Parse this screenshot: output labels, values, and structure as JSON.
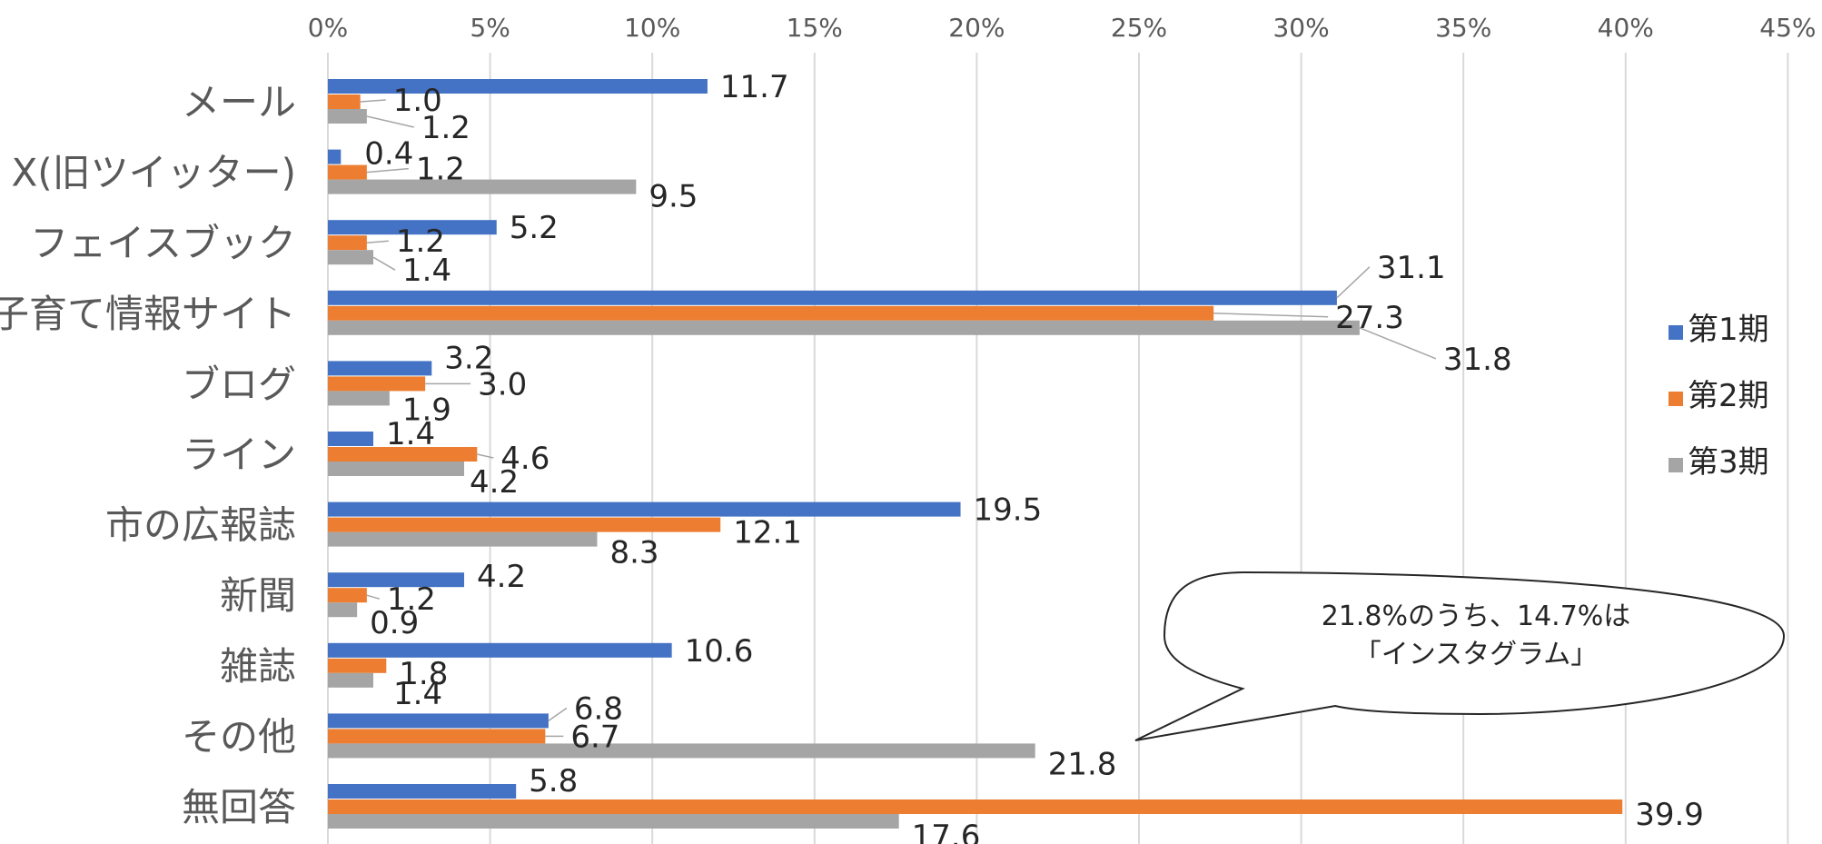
{
  "chart_data": {
    "type": "bar",
    "orientation": "horizontal",
    "categories": [
      "メール",
      "X(旧ツイッター)",
      "フェイスブック",
      "子育て情報サイト",
      "ブログ",
      "ライン",
      "市の広報誌",
      "新聞",
      "雑誌",
      "その他",
      "無回答"
    ],
    "series": [
      {
        "name": "第1期",
        "color": "#4472C4",
        "values": [
          11.7,
          0.4,
          5.2,
          31.1,
          3.2,
          1.4,
          19.5,
          4.2,
          10.6,
          6.8,
          5.8
        ]
      },
      {
        "name": "第2期",
        "color": "#ED7D31",
        "values": [
          1.0,
          1.2,
          1.2,
          27.3,
          3.0,
          4.6,
          12.1,
          1.2,
          1.8,
          6.7,
          39.9
        ]
      },
      {
        "name": "第3期",
        "color": "#A5A5A5",
        "values": [
          1.2,
          9.5,
          1.4,
          31.8,
          1.9,
          4.2,
          8.3,
          0.9,
          1.4,
          21.8,
          17.6
        ]
      }
    ],
    "x_ticks": [
      "0%",
      "5%",
      "10%",
      "15%",
      "20%",
      "25%",
      "30%",
      "35%",
      "40%",
      "45%"
    ],
    "xlim": [
      0,
      45
    ],
    "x_axis_position": "top",
    "grid": true,
    "legend_position": "right",
    "annotation": {
      "lines": [
        "21.8%のうち、14.7%は",
        "「インスタグラム」"
      ],
      "points_to": {
        "category": "その他",
        "series": "第3期"
      }
    }
  }
}
